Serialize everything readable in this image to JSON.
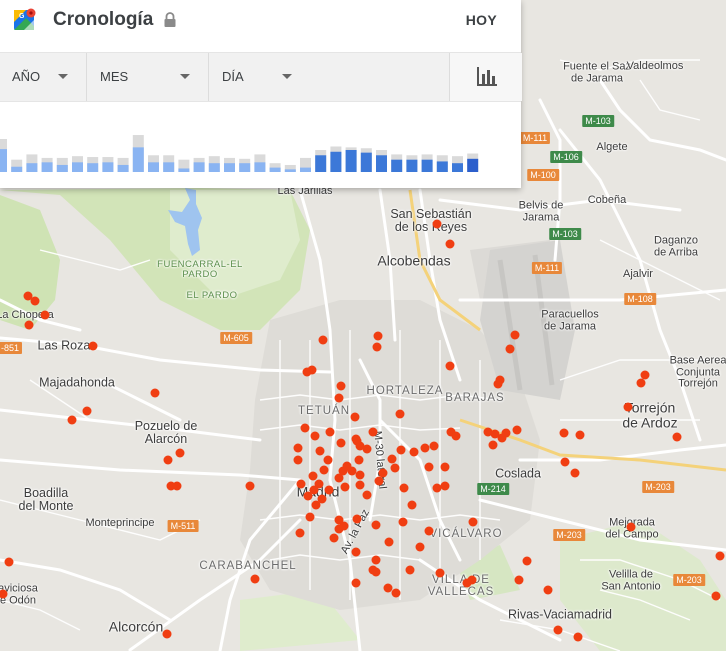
{
  "header": {
    "title": "Cronología",
    "today_label": "HOY",
    "logo_icon": "google-maps-icon",
    "lock_icon": "lock-icon"
  },
  "filters": {
    "year_label": "AÑO",
    "month_label": "MES",
    "day_label": "DÍA",
    "chart_toggle_icon": "bar-chart-icon"
  },
  "chart_data": {
    "type": "bar",
    "colors": {
      "total": "#dadada",
      "selected_light": "#8ab4f2",
      "selected_dark": "#3c78d8"
    },
    "series": [
      {
        "values": [
          0.75,
          0.28,
          0.4,
          0.32,
          0.32,
          0.36,
          0.34,
          0.34,
          0.32,
          0.84,
          0.38,
          0.38,
          0.28,
          0.32,
          0.36,
          0.32,
          0.3,
          0.4,
          0.2,
          0.16,
          0.32,
          0.5,
          0.58,
          0.56,
          0.54,
          0.5,
          0.4,
          0.38,
          0.4,
          0.38,
          0.36,
          0.42
        ]
      },
      {
        "values": [
          0.52,
          0.12,
          0.2,
          0.22,
          0.16,
          0.22,
          0.2,
          0.22,
          0.16,
          0.56,
          0.22,
          0.22,
          0.08,
          0.22,
          0.2,
          0.2,
          0.2,
          0.22,
          0.1,
          0.06,
          0.1,
          0.38,
          0.46,
          0.5,
          0.44,
          0.38,
          0.28,
          0.28,
          0.28,
          0.24,
          0.2,
          0.3
        ]
      }
    ]
  },
  "map": {
    "places": [
      {
        "name": "Fuente el Saz de Jarama",
        "line1": "Fuente el Saz",
        "line2": "de Jarama",
        "size": "sm"
      },
      {
        "name": "Valdeolmos",
        "line1": "Valdeolmos",
        "size": "sm"
      },
      {
        "name": "Algete",
        "line1": "Algete",
        "size": "sm"
      },
      {
        "name": "Belvis de Jarama",
        "line1": "Belvis de",
        "line2": "Jarama",
        "size": "sm"
      },
      {
        "name": "Cobeña",
        "line1": "Cobeña",
        "size": "sm"
      },
      {
        "name": "Las Jarillas",
        "line1": "Las Jarillas",
        "size": "sm"
      },
      {
        "name": "San Sebastián de los Reyes",
        "line1": "San Sebastián",
        "line2": "de los Reyes",
        "size": "mid"
      },
      {
        "name": "Alcobendas",
        "line1": "Alcobendas",
        "size": "big"
      },
      {
        "name": "Daganzo de Arriba",
        "line1": "Daganzo",
        "line2": "de Arriba",
        "size": "sm"
      },
      {
        "name": "Ajalvir",
        "line1": "Ajalvir",
        "size": "sm"
      },
      {
        "name": "Fuencarral-El Pardo",
        "line1": "FUENCARRAL-EL",
        "line2": "PARDO",
        "size": "green"
      },
      {
        "name": "El Pardo",
        "line1": "EL PARDO",
        "size": "green"
      },
      {
        "name": "La Chopera",
        "line1": "La Chopera",
        "size": "sm"
      },
      {
        "name": "Las Rozas",
        "line1": "Las Rozas",
        "size": "mid"
      },
      {
        "name": "Majadahonda",
        "line1": "Majadahonda",
        "size": "mid"
      },
      {
        "name": "Paracuellos de Jarama",
        "line1": "Paracuellos",
        "line2": "de Jarama",
        "size": "sm"
      },
      {
        "name": "Hortaleza",
        "line1": "HORTALEZA",
        "size": "dist"
      },
      {
        "name": "Barajas",
        "line1": "BARAJAS",
        "size": "dist"
      },
      {
        "name": "Tetuán",
        "line1": "TETUÁN",
        "size": "dist"
      },
      {
        "name": "Base Aérea Conjunta Torrejón",
        "line1": "Base Aerea",
        "line2": "Conjunta",
        "line3": "Torrejón",
        "size": "sm"
      },
      {
        "name": "Torrejón de Ardoz",
        "line1": "Torrejón",
        "line2": "de Ardoz",
        "size": "big"
      },
      {
        "name": "Pozuelo de Alarcón",
        "line1": "Pozuelo de",
        "line2": "Alarcón",
        "size": "mid"
      },
      {
        "name": "Coslada",
        "line1": "Coslada",
        "size": "mid"
      },
      {
        "name": "Madrid",
        "line1": "Madrid",
        "size": "big"
      },
      {
        "name": "Boadilla del Monte",
        "line1": "Boadilla",
        "line2": "del Monte",
        "size": "mid"
      },
      {
        "name": "Monteprincipe",
        "line1": "Monteprincipe",
        "size": "sm"
      },
      {
        "name": "Mejorada del Campo",
        "line1": "Mejorada",
        "line2": "del Campo",
        "size": "sm"
      },
      {
        "name": "Vicálvaro",
        "line1": "VICÁLVARO",
        "size": "dist"
      },
      {
        "name": "Carabanchel",
        "line1": "CARABANCHEL",
        "size": "dist"
      },
      {
        "name": "Villa de Vallecas",
        "line1": "VILLA DE",
        "line2": "VALLECAS",
        "size": "dist"
      },
      {
        "name": "Velilla de San Antonio",
        "line1": "Velilla de",
        "line2": "San Antonio",
        "size": "sm"
      },
      {
        "name": "Villaviciosa de Odón",
        "line1": "aviciosa",
        "line2": "e Odón",
        "size": "sm"
      },
      {
        "name": "Rivas-Vaciamadrid",
        "line1": "Rivas-Vaciamadrid",
        "size": "mid"
      },
      {
        "name": "Alcorcón",
        "line1": "Alcorcón",
        "size": "big"
      },
      {
        "name": "Av. la Paz",
        "line1": "Av. la Paz",
        "size": "sm"
      },
      {
        "name": "M-30 lateral",
        "line1": "M-30 lateral",
        "size": "sm"
      }
    ],
    "road_shields": [
      {
        "label": "M-111",
        "color": "orange"
      },
      {
        "label": "M-103",
        "color": "green"
      },
      {
        "label": "M-106",
        "color": "green"
      },
      {
        "label": "M-100",
        "color": "orange"
      },
      {
        "label": "M-103",
        "color": "green"
      },
      {
        "label": "M-111",
        "color": "orange"
      },
      {
        "label": "M-108",
        "color": "orange"
      },
      {
        "label": "M-605",
        "color": "orange"
      },
      {
        "label": "-851",
        "color": "orange"
      },
      {
        "label": "M-214",
        "color": "green"
      },
      {
        "label": "M-203",
        "color": "orange"
      },
      {
        "label": "M-203",
        "color": "orange"
      },
      {
        "label": "M-511",
        "color": "orange"
      },
      {
        "label": "M-203",
        "color": "orange"
      }
    ]
  }
}
